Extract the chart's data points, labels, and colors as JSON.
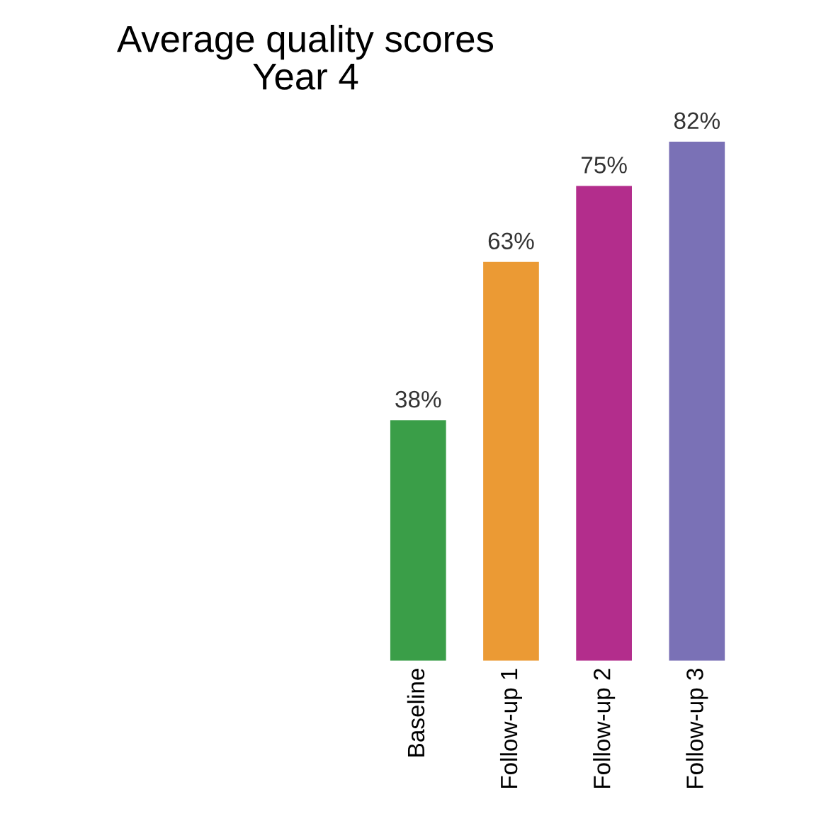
{
  "chart_data": {
    "type": "bar",
    "title": "Average quality scores\nYear 4",
    "categories": [
      "Baseline",
      "Follow-up 1",
      "Follow-up 2",
      "Follow-up 3"
    ],
    "values": [
      38,
      63,
      75,
      82
    ],
    "colors": [
      "#3a9e48",
      "#eb9a34",
      "#b32d8c",
      "#7a71b6"
    ],
    "value_labels": [
      "38%",
      "63%",
      "75%",
      "82%"
    ]
  }
}
